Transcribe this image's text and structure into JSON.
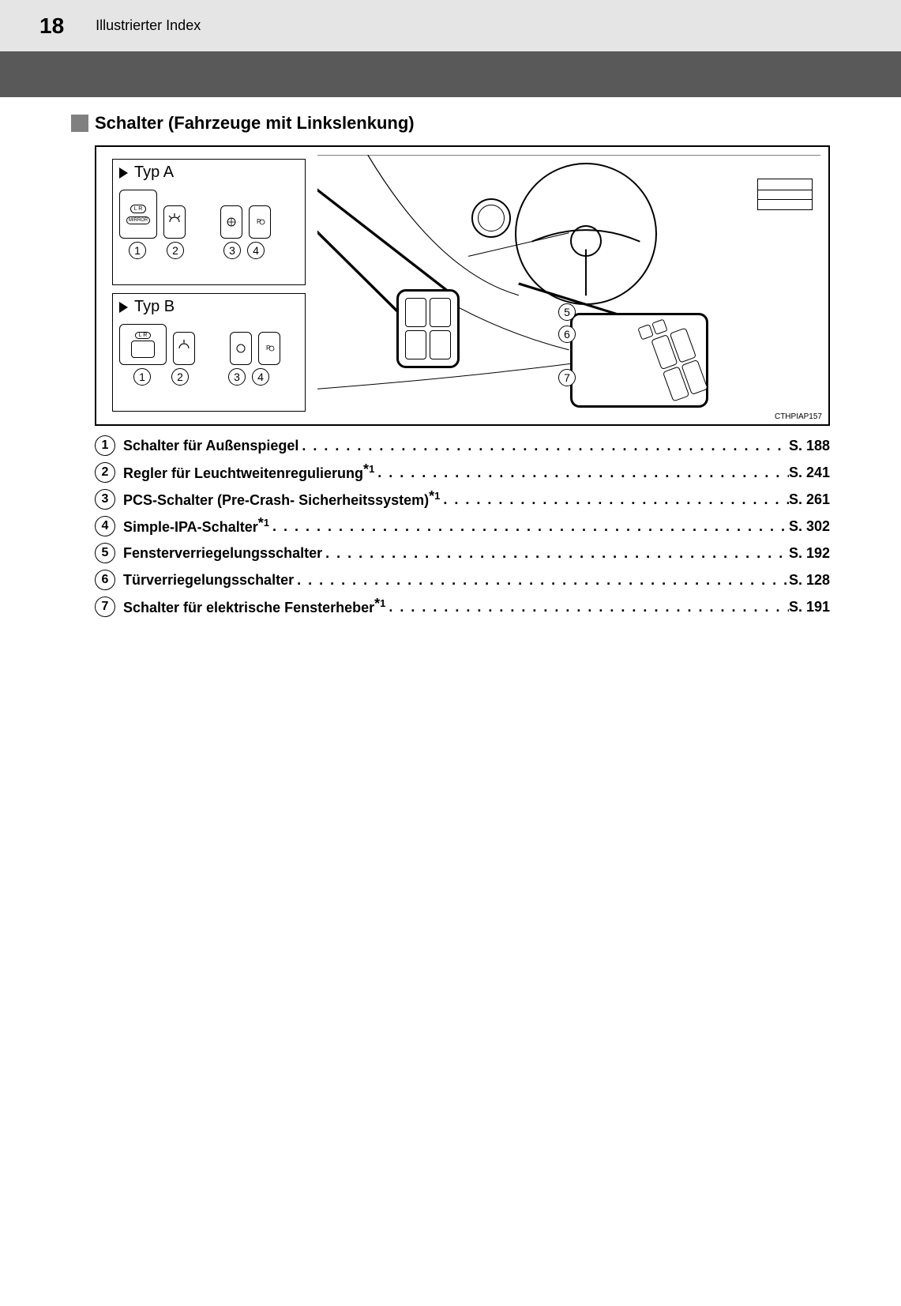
{
  "header": {
    "page_number": "18",
    "title": "Illustrierter Index"
  },
  "section": {
    "title": "Schalter (Fahrzeuge mit Linkslenkung)"
  },
  "diagram": {
    "type_a_label": "Typ A",
    "type_b_label": "Typ B",
    "code": "CTHPIAP157",
    "panel_nums_a": [
      "1",
      "2",
      "3",
      "4"
    ],
    "panel_nums_b": [
      "1",
      "2",
      "3",
      "4"
    ],
    "callout_nums": [
      "5",
      "6",
      "7"
    ],
    "mirror_label_top": "L  R",
    "mirror_label_bottom": "MIRROR"
  },
  "index": {
    "page_prefix": "S.",
    "items": [
      {
        "n": "1",
        "label": "Schalter für Außenspiegel",
        "note": "",
        "page": "188"
      },
      {
        "n": "2",
        "label": "Regler für Leuchtweitenregulierung",
        "note": "*1",
        "page": "241"
      },
      {
        "n": "3",
        "label": "PCS-Schalter (Pre-Crash- Sicherheitssystem)",
        "note": "*1",
        "page": "261"
      },
      {
        "n": "4",
        "label": "Simple-IPA-Schalter",
        "note": "*1",
        "page": "302"
      },
      {
        "n": "5",
        "label": "Fensterverriegelungsschalter",
        "note": "",
        "page": "192"
      },
      {
        "n": "6",
        "label": "Türverriegelungsschalter",
        "note": "",
        "page": "128"
      },
      {
        "n": "7",
        "label": "Schalter für elektrische Fensterheber",
        "note": "*1",
        "page": "191"
      }
    ]
  },
  "colors": {
    "header_bg": "#e5e5e5",
    "band_bg": "#595959",
    "bullet_bg": "#808080",
    "text": "#000000"
  }
}
